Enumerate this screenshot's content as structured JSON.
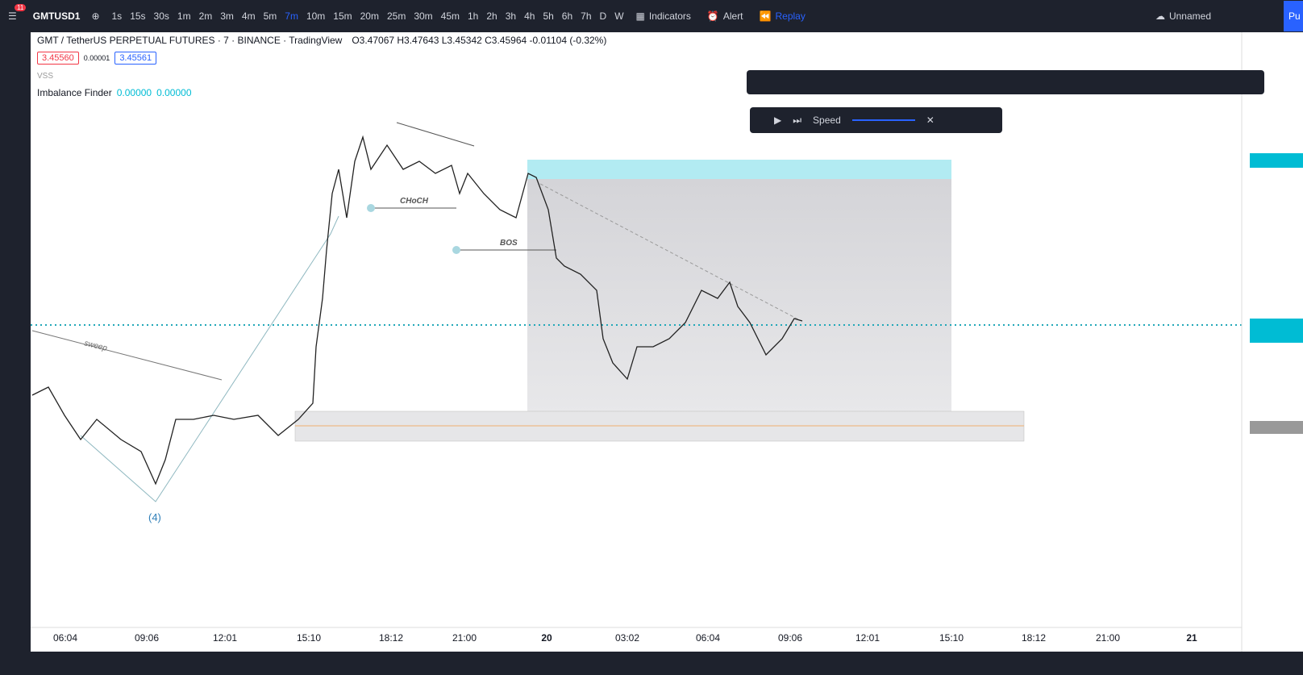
{
  "toolbar": {
    "badge": "11",
    "symbol": "GMTUSD1",
    "intervals": [
      "1s",
      "15s",
      "30s",
      "1m",
      "2m",
      "3m",
      "4m",
      "5m",
      "7m",
      "10m",
      "15m",
      "20m",
      "25m",
      "30m",
      "45m",
      "1h",
      "2h",
      "3h",
      "4h",
      "5h",
      "6h",
      "7h",
      "D",
      "W"
    ],
    "active_interval": "7m",
    "indicators": "Indicators",
    "alert": "Alert",
    "replay": "Replay",
    "layout": "Unnamed",
    "publish": "Pu"
  },
  "legend": {
    "title": "GMT / TetherUS PERPETUAL FUTURES · 7 · BINANCE · TradingView",
    "ohlc": "O3.47067 H3.47643 L3.45342 C3.45964 -0.01104 (-0.32%)",
    "bid": "3.45560",
    "spread": "0.00001",
    "ask": "3.45561",
    "vss": "VSS",
    "indicator": "Imbalance Finder",
    "indicator_values": [
      "0.00000",
      "0.00000"
    ]
  },
  "replay_bar": {
    "speed": "Speed"
  },
  "annotations": {
    "sweep": "sweep",
    "choch": "CHoCH",
    "bos": "BOS",
    "wave": "(4)"
  },
  "time_axis": [
    "06:04",
    "09:06",
    "12:01",
    "15:10",
    "18:12",
    "21:00",
    "20",
    "03:02",
    "06:04",
    "09:06",
    "12:01",
    "15:10",
    "18:12",
    "21:00",
    "21"
  ]
}
